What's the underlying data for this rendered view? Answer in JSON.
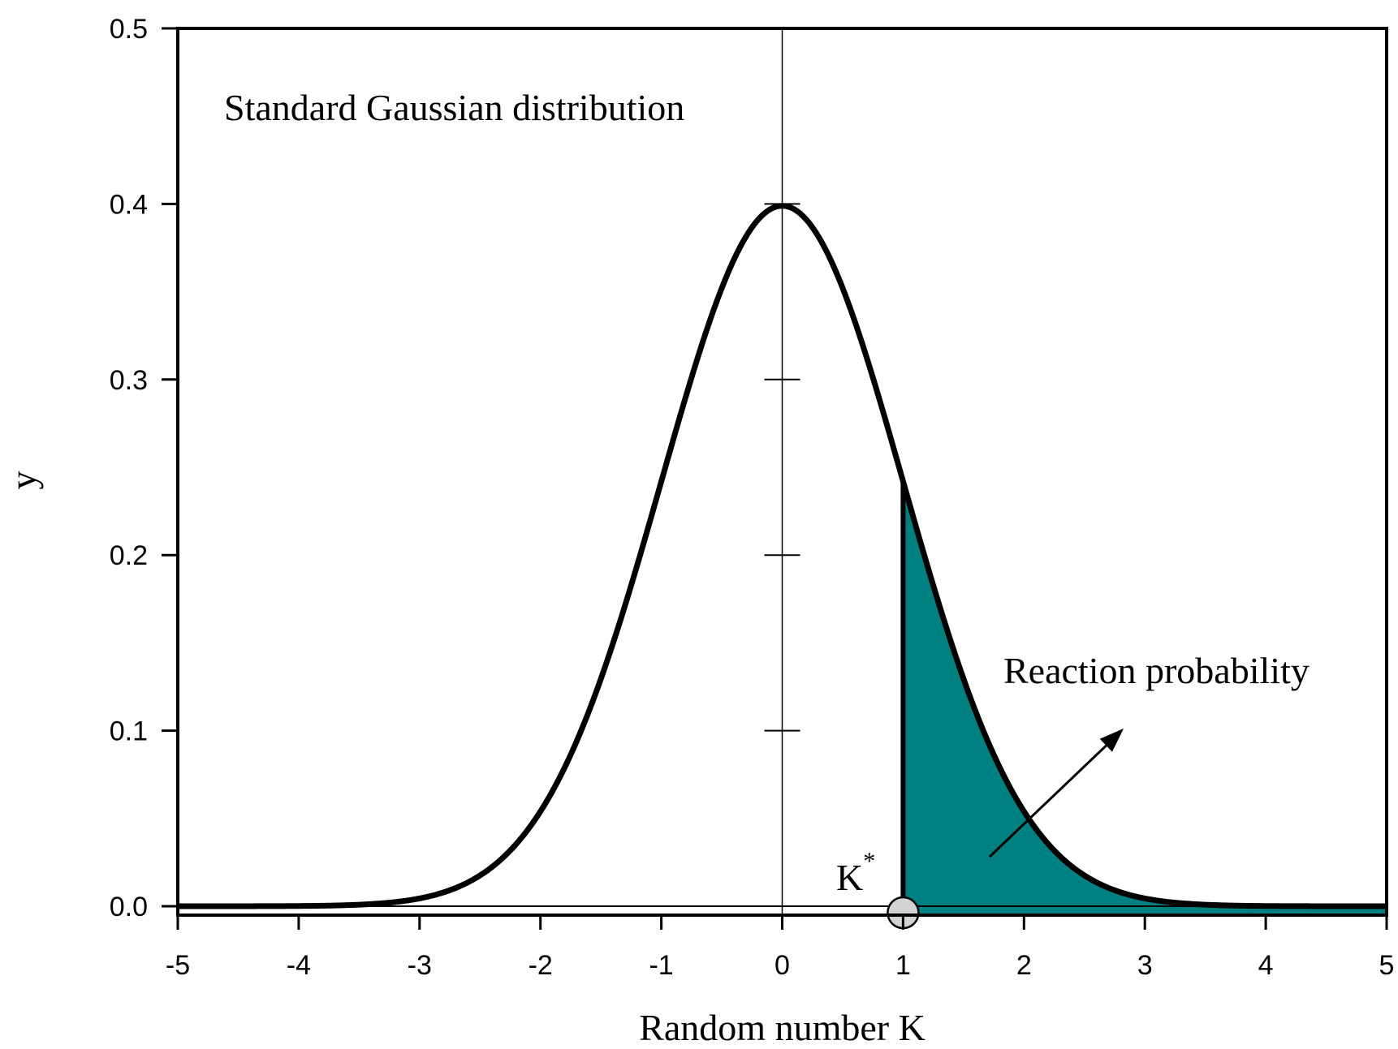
{
  "chart_data": {
    "type": "area",
    "title": "",
    "xlabel": "Random number K",
    "ylabel": "y",
    "xlim": [
      -5,
      5
    ],
    "ylim": [
      0,
      0.5
    ],
    "x_ticks": [
      "-5",
      "-4",
      "-3",
      "-2",
      "-1",
      "0",
      "1",
      "2",
      "3",
      "4",
      "5"
    ],
    "y_ticks": [
      "0.0",
      "0.1",
      "0.2",
      "0.3",
      "0.4",
      "0.5"
    ],
    "grid": false,
    "series": [
      {
        "distribution": "standard-normal",
        "mean": 0,
        "std": 1,
        "x_range": [
          -5,
          5
        ]
      }
    ],
    "shaded_region": {
      "x_from": 1,
      "x_to": 5,
      "color": "#008080"
    },
    "threshold": {
      "x": 1,
      "label": "K",
      "label_superscript": "*"
    },
    "annotations": {
      "distribution_label": "Standard Gaussian distribution",
      "area_label": "Reaction probability"
    },
    "colors": {
      "curve": "#000000",
      "fill": "#008080",
      "marker": "#d3d3d3"
    }
  }
}
